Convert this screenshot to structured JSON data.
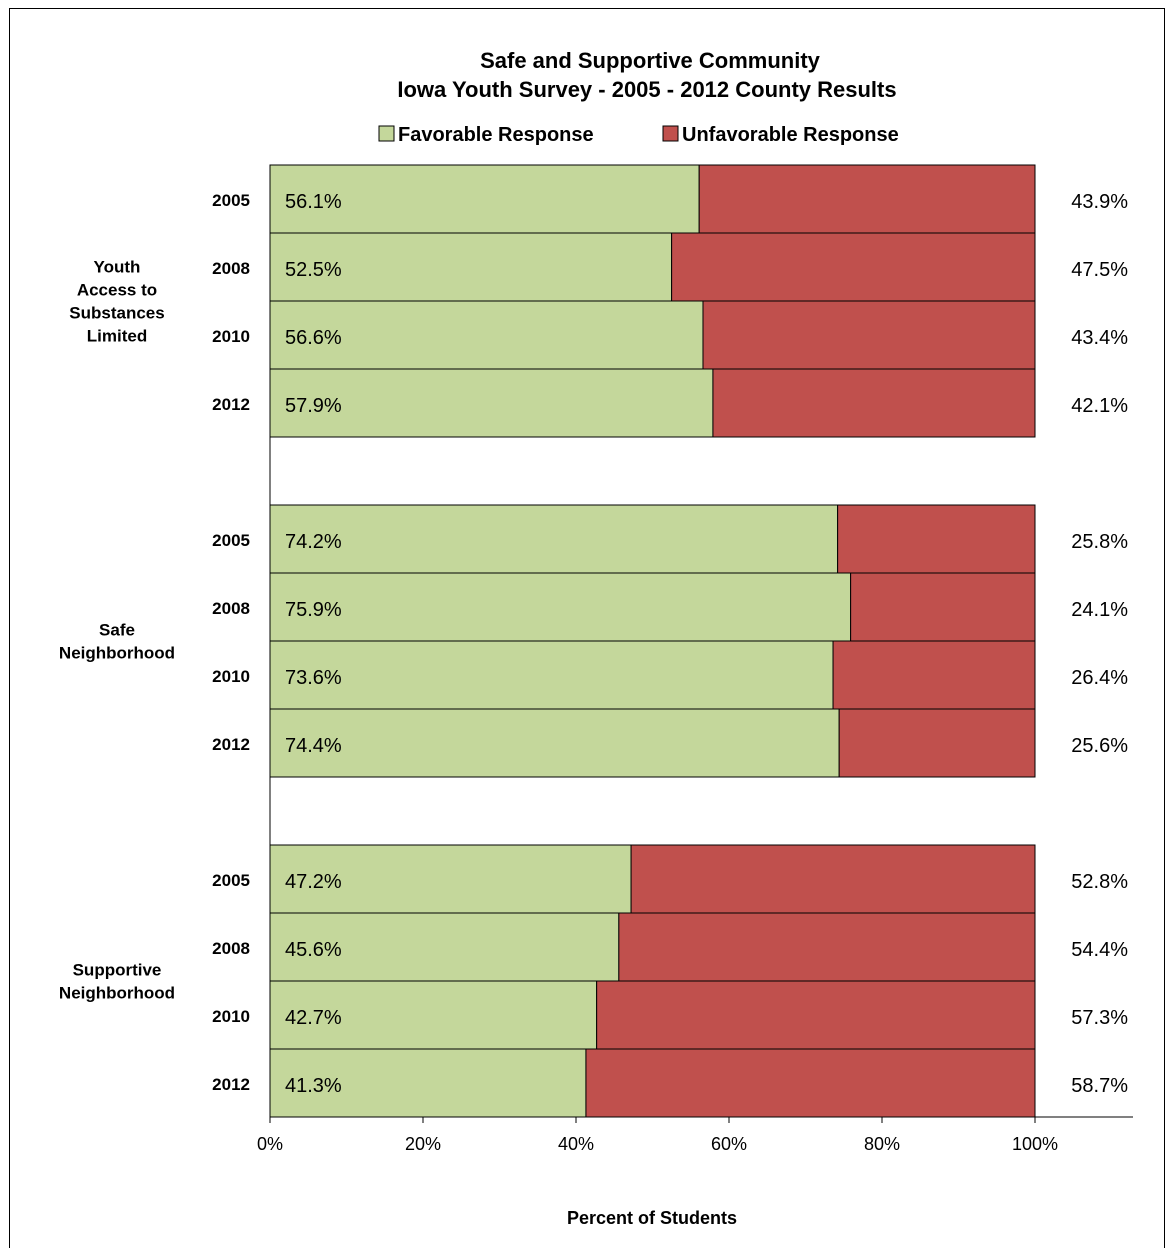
{
  "chart_data": {
    "type": "bar",
    "orientation": "horizontal",
    "stacked": true,
    "title": "Safe and Supportive Community",
    "subtitle": "Iowa Youth Survey - 2005 - 2012 County Results",
    "xlabel": "Percent of Students",
    "xlim": [
      0,
      100
    ],
    "x_ticks": [
      "0%",
      "20%",
      "40%",
      "60%",
      "80%",
      "100%"
    ],
    "legend_position": "top",
    "series": [
      {
        "name": "Favorable Response",
        "color": "#c4d79b"
      },
      {
        "name": "Unfavorable Response",
        "color": "#c0504d"
      }
    ],
    "groups": [
      {
        "label_lines": [
          "Youth",
          "Access to",
          "Substances",
          "Limited"
        ],
        "rows": [
          {
            "year": "2005",
            "favorable": 56.1,
            "unfavorable": 43.9,
            "favorable_label": "56.1%",
            "unfavorable_label": "43.9%"
          },
          {
            "year": "2008",
            "favorable": 52.5,
            "unfavorable": 47.5,
            "favorable_label": "52.5%",
            "unfavorable_label": "47.5%"
          },
          {
            "year": "2010",
            "favorable": 56.6,
            "unfavorable": 43.4,
            "favorable_label": "56.6%",
            "unfavorable_label": "43.4%"
          },
          {
            "year": "2012",
            "favorable": 57.9,
            "unfavorable": 42.1,
            "favorable_label": "57.9%",
            "unfavorable_label": "42.1%"
          }
        ]
      },
      {
        "label_lines": [
          "Safe",
          "Neighborhood"
        ],
        "rows": [
          {
            "year": "2005",
            "favorable": 74.2,
            "unfavorable": 25.8,
            "favorable_label": "74.2%",
            "unfavorable_label": "25.8%"
          },
          {
            "year": "2008",
            "favorable": 75.9,
            "unfavorable": 24.1,
            "favorable_label": "75.9%",
            "unfavorable_label": "24.1%"
          },
          {
            "year": "2010",
            "favorable": 73.6,
            "unfavorable": 26.4,
            "favorable_label": "73.6%",
            "unfavorable_label": "26.4%"
          },
          {
            "year": "2012",
            "favorable": 74.4,
            "unfavorable": 25.6,
            "favorable_label": "74.4%",
            "unfavorable_label": "25.6%"
          }
        ]
      },
      {
        "label_lines": [
          "Supportive",
          "Neighborhood"
        ],
        "rows": [
          {
            "year": "2005",
            "favorable": 47.2,
            "unfavorable": 52.8,
            "favorable_label": "47.2%",
            "unfavorable_label": "52.8%"
          },
          {
            "year": "2008",
            "favorable": 45.6,
            "unfavorable": 54.4,
            "favorable_label": "45.6%",
            "unfavorable_label": "54.4%"
          },
          {
            "year": "2010",
            "favorable": 42.7,
            "unfavorable": 57.3,
            "favorable_label": "42.7%",
            "unfavorable_label": "57.3%"
          },
          {
            "year": "2012",
            "favorable": 41.3,
            "unfavorable": 58.7,
            "favorable_label": "41.3%",
            "unfavorable_label": "58.7%"
          }
        ]
      }
    ]
  }
}
